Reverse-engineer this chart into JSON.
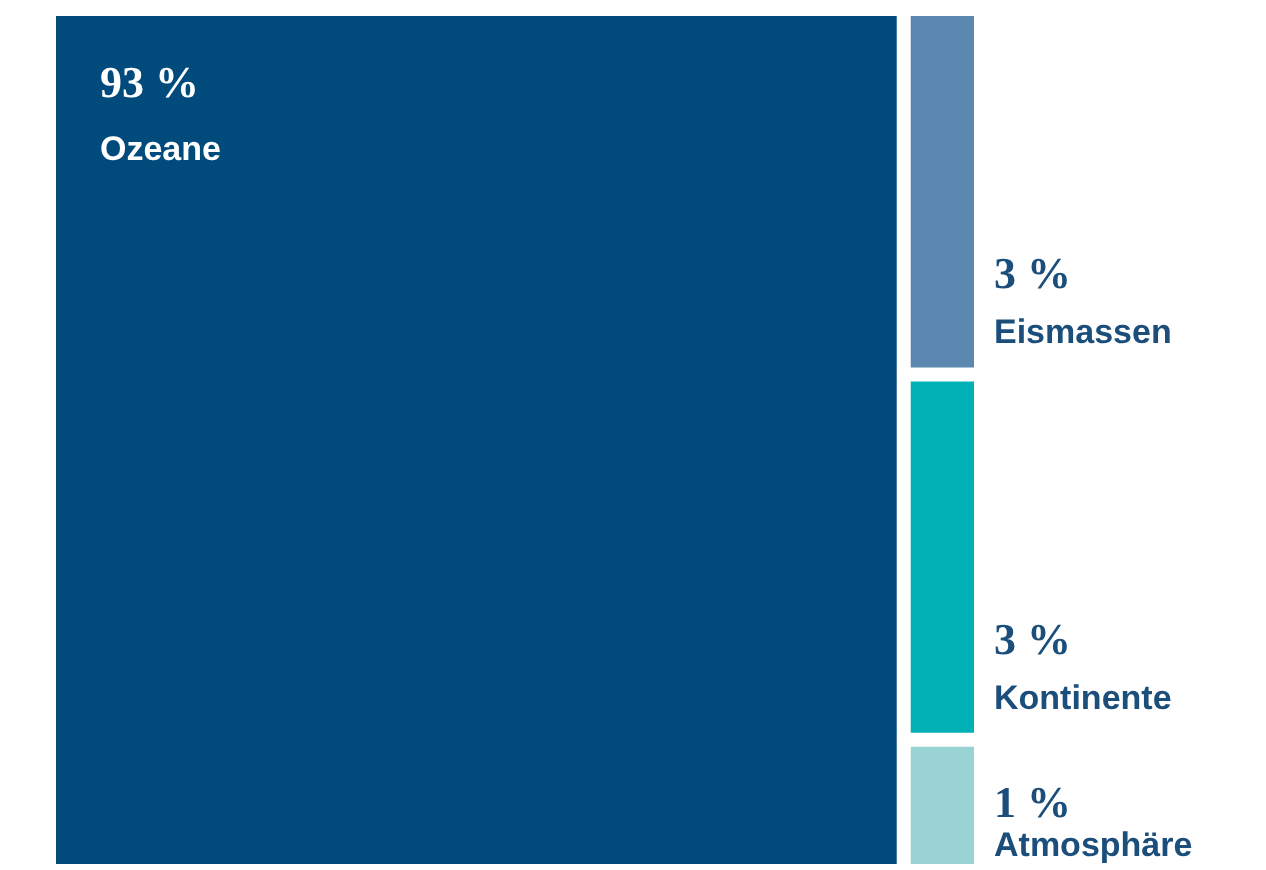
{
  "chart_data": {
    "type": "other",
    "categories": [
      "Ozeane",
      "Eismassen",
      "Kontinente",
      "Atmosphäre"
    ],
    "values": [
      93,
      3,
      3,
      1
    ],
    "value_labels": [
      "93 %",
      "3 %",
      "3 %",
      "1 %"
    ],
    "colors": [
      "#004b7c",
      "#5b87b0",
      "#00b2b5",
      "#9ad3d3"
    ]
  }
}
